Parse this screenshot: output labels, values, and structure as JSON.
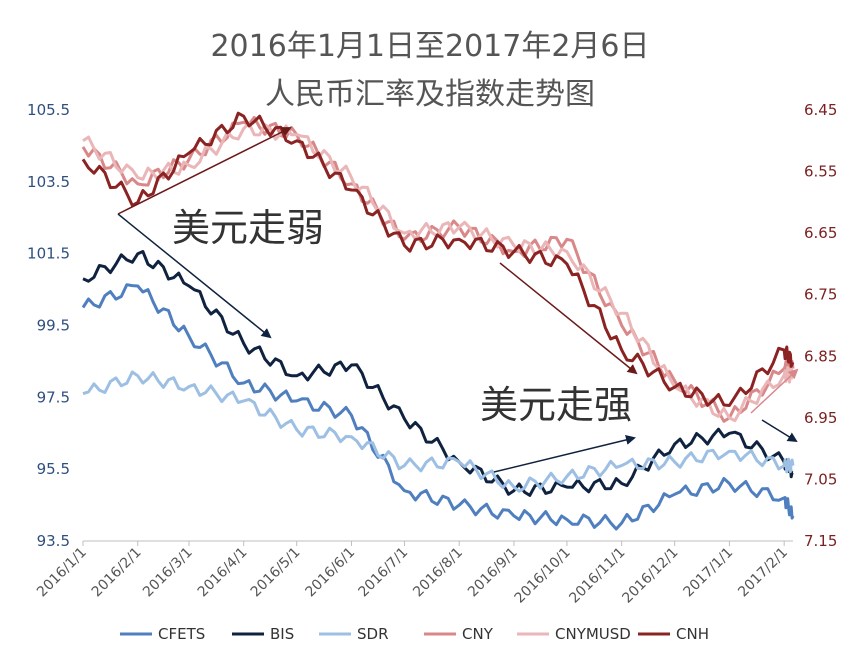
{
  "chart_data": {
    "type": "line",
    "title": "2016年1月1日至2017年2月6日",
    "subtitle": "人民币汇率及指数走势图",
    "x": [
      "2016/1/1",
      "2016/2/1",
      "2016/3/1",
      "2016/4/1",
      "2016/5/1",
      "2016/6/1",
      "2016/7/1",
      "2016/8/1",
      "2016/9/1",
      "2016/10/1",
      "2016/11/1",
      "2016/12/1",
      "2017/1/1",
      "2017/2/1",
      "2017/2/6"
    ],
    "x_tick_labels": [
      "2016/1/1",
      "2016/2/1",
      "2016/3/1",
      "2016/4/1",
      "2016/5/1",
      "2016/6/1",
      "2016/7/1",
      "2016/8/1",
      "2016/9/1",
      "2016/10/1",
      "2016/11/1",
      "2016/12/1",
      "2017/1/1",
      "2017/2/1"
    ],
    "y_left": {
      "range": [
        93.5,
        105.5
      ],
      "ticks": [
        "93.5",
        "95.5",
        "97.5",
        "99.5",
        "101.5",
        "103.5",
        "105.5"
      ]
    },
    "y_right": {
      "range": [
        7.15,
        6.45
      ],
      "inverted": true,
      "ticks": [
        "6.45",
        "6.55",
        "6.65",
        "6.75",
        "6.85",
        "6.95",
        "7.05",
        "7.15"
      ]
    },
    "grid": false,
    "legend_position": "bottom",
    "series": [
      {
        "name": "CFETS",
        "axis": "left",
        "color": "#4F7FBF",
        "values": [
          100.0,
          100.6,
          99.2,
          97.9,
          97.4,
          97.0,
          94.9,
          94.5,
          94.2,
          94.1,
          94.0,
          94.8,
          95.1,
          94.7,
          94.2
        ]
      },
      {
        "name": "BIS",
        "axis": "left",
        "color": "#0F223F",
        "values": [
          100.8,
          101.5,
          100.6,
          99.0,
          98.1,
          98.4,
          96.9,
          95.7,
          94.9,
          95.0,
          95.1,
          96.2,
          96.5,
          95.7,
          95.4
        ]
      },
      {
        "name": "SDR",
        "axis": "left",
        "color": "#9DBFE3",
        "values": [
          97.6,
          98.1,
          97.8,
          97.4,
          96.6,
          96.4,
          95.6,
          95.7,
          95.0,
          95.3,
          95.6,
          95.7,
          96.0,
          95.6,
          95.6
        ]
      },
      {
        "name": "CNY",
        "axis": "right",
        "color": "#D9888A",
        "values": [
          6.51,
          6.57,
          6.53,
          6.47,
          6.49,
          6.57,
          6.66,
          6.64,
          6.68,
          6.66,
          6.8,
          6.89,
          6.95,
          6.87,
          6.87
        ]
      },
      {
        "name": "CNYMUSD",
        "axis": "right",
        "color": "#EAB6B8",
        "values": [
          6.5,
          6.56,
          6.54,
          6.48,
          6.49,
          6.56,
          6.65,
          6.64,
          6.67,
          6.68,
          6.78,
          6.9,
          6.95,
          6.88,
          6.88
        ]
      },
      {
        "name": "CNH",
        "axis": "right",
        "color": "#8B2323",
        "values": [
          6.53,
          6.6,
          6.52,
          6.46,
          6.5,
          6.58,
          6.67,
          6.66,
          6.68,
          6.7,
          6.84,
          6.9,
          6.93,
          6.84,
          6.86
        ]
      }
    ],
    "annotations": [
      "美元走弱",
      "美元走强"
    ]
  }
}
